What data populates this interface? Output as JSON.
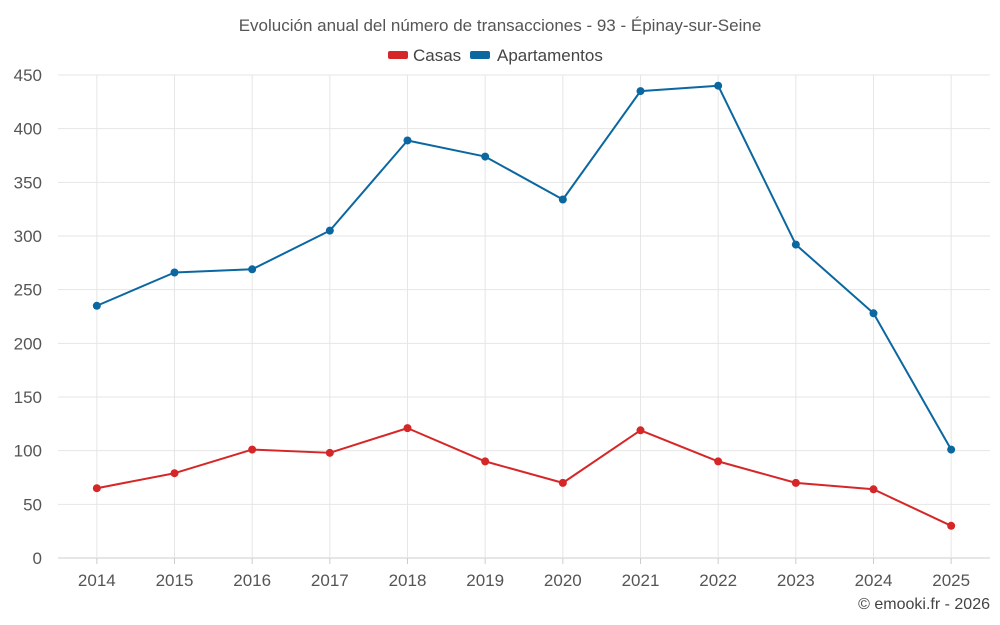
{
  "chart_data": {
    "type": "line",
    "title": "Evolución anual del número de transacciones - 93 - Épinay-sur-Seine",
    "xlabel": "",
    "ylabel": "",
    "categories": [
      "2014",
      "2015",
      "2016",
      "2017",
      "2018",
      "2019",
      "2020",
      "2021",
      "2022",
      "2023",
      "2024",
      "2025"
    ],
    "ylim": [
      0,
      450
    ],
    "yticks": [
      0,
      50,
      100,
      150,
      200,
      250,
      300,
      350,
      400,
      450
    ],
    "grid": true,
    "legend_position": "top-center",
    "series": [
      {
        "name": "Casas",
        "color": "#d62728",
        "values": [
          65,
          79,
          101,
          98,
          121,
          90,
          70,
          119,
          90,
          70,
          64,
          30
        ]
      },
      {
        "name": "Apartamentos",
        "color": "#0b67a0",
        "values": [
          235,
          266,
          269,
          305,
          389,
          374,
          334,
          435,
          440,
          292,
          228,
          101
        ]
      }
    ]
  },
  "credit": "© emooki.fr - 2026"
}
